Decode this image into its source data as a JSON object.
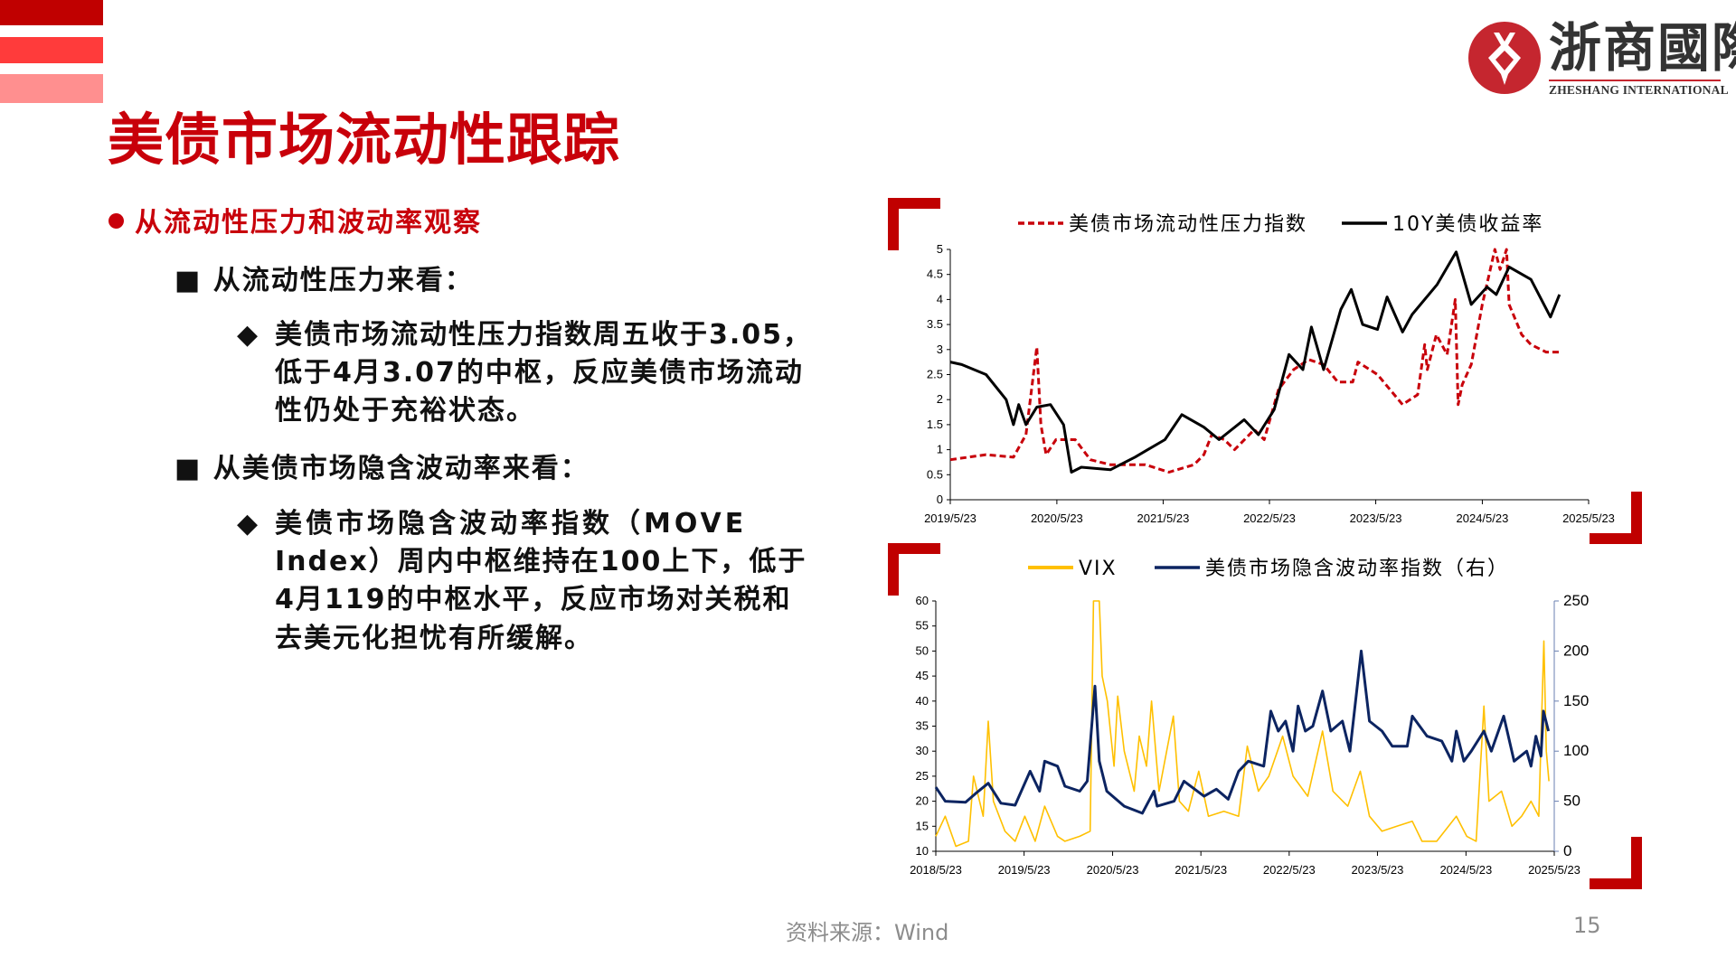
{
  "header": {
    "title": "美债市场流动性跟踪",
    "bar_colors": [
      "#c00000",
      "#ff3b3b",
      "#ff8f8f"
    ]
  },
  "logo": {
    "name_cn": "浙商國際",
    "name_en": "ZHESHANG INTERNATIONAL",
    "brand_color": "#c5262f"
  },
  "content": {
    "bullet": "从流动性压力和波动率观察",
    "sections": [
      {
        "heading": "从流动性压力来看：",
        "lines": [
          "美债市场流动性压力指数周五收于3.05，",
          "低于4月3.07的中枢，反应美债市场流动",
          "性仍处于充裕状态。"
        ]
      },
      {
        "heading": "从美债市场隐含波动率来看：",
        "lines": [
          "美债市场隐含波动率指数（MOVE",
          "Index）周内中枢维持在100上下，低于",
          "4月119的中枢水平，反应市场对关税和",
          "去美元化担忧有所缓解。"
        ]
      }
    ]
  },
  "footer": {
    "source": "资料来源：Wind",
    "page_number": "15"
  },
  "chart_data": [
    {
      "type": "line",
      "title": "",
      "xlabel": "",
      "ylabel": "",
      "x_ticks": [
        "2019/5/23",
        "2020/5/23",
        "2021/5/23",
        "2022/5/23",
        "2023/5/23",
        "2024/5/23",
        "2025/5/23"
      ],
      "xlim": [
        "2019-05-23",
        "2025-05-23"
      ],
      "ylim": [
        0,
        5
      ],
      "y_ticks": [
        0,
        0.5,
        1,
        1.5,
        2,
        2.5,
        3,
        3.5,
        4,
        4.5,
        5
      ],
      "legend": "top",
      "grid": false,
      "series": [
        {
          "name": "美债市场流动性压力指数",
          "color": "#c8000a",
          "style": "dashed",
          "x": [
            "2019-05-23",
            "2019-09-23",
            "2019-12-26",
            "2020-02-07",
            "2020-03-15",
            "2020-03-29",
            "2020-04-16",
            "2020-05-20",
            "2020-07-25",
            "2020-09-15",
            "2020-11-23",
            "2021-03-23",
            "2021-06-12",
            "2021-09-06",
            "2021-10-10",
            "2021-11-06",
            "2021-12-19",
            "2022-01-23",
            "2022-04-01",
            "2022-05-05",
            "2022-06-23",
            "2022-08-14",
            "2022-10-05",
            "2022-11-25",
            "2023-01-13",
            "2023-03-05",
            "2023-03-23",
            "2023-05-29",
            "2023-08-23",
            "2023-10-14",
            "2023-11-07",
            "2023-11-16",
            "2023-12-17",
            "2024-01-23",
            "2024-02-20",
            "2024-03-01",
            "2024-03-15",
            "2024-04-15",
            "2024-05-23",
            "2024-07-05",
            "2024-07-23",
            "2024-08-14",
            "2024-08-23",
            "2024-10-05",
            "2024-11-06",
            "2024-12-28",
            "2025-02-12"
          ],
          "y": [
            0.8,
            0.9,
            0.85,
            1.3,
            3.05,
            1.5,
            0.9,
            1.2,
            1.2,
            0.8,
            0.7,
            0.7,
            0.55,
            0.7,
            0.9,
            1.3,
            1.2,
            1.0,
            1.4,
            1.2,
            2.2,
            2.6,
            2.8,
            2.7,
            2.35,
            2.35,
            2.75,
            2.5,
            1.9,
            2.1,
            3.1,
            2.6,
            3.3,
            2.9,
            4.0,
            1.9,
            2.3,
            2.7,
            3.9,
            5.0,
            4.6,
            5.0,
            3.9,
            3.3,
            3.1,
            2.95,
            2.95
          ]
        },
        {
          "name": "10Y美债收益率",
          "color": "#000000",
          "style": "solid",
          "x": [
            "2019-05-23",
            "2019-07-01",
            "2019-09-23",
            "2019-12-01",
            "2019-12-26",
            "2020-01-13",
            "2020-02-07",
            "2020-03-15",
            "2020-05-01",
            "2020-06-15",
            "2020-07-12",
            "2020-08-15",
            "2020-11-23",
            "2021-02-15",
            "2021-05-29",
            "2021-07-26",
            "2021-10-10",
            "2021-12-01",
            "2022-02-25",
            "2022-04-15",
            "2022-06-08",
            "2022-07-29",
            "2022-09-15",
            "2022-10-14",
            "2022-11-25",
            "2023-01-23",
            "2023-02-28",
            "2023-04-08",
            "2023-05-29",
            "2023-07-01",
            "2023-08-23",
            "2023-09-25",
            "2023-12-20",
            "2024-02-23",
            "2024-04-15",
            "2024-06-08",
            "2024-07-10",
            "2024-08-23",
            "2024-11-06",
            "2025-01-12",
            "2025-02-12"
          ],
          "y": [
            2.75,
            2.7,
            2.5,
            2.0,
            1.5,
            1.9,
            1.5,
            1.85,
            1.9,
            1.5,
            0.55,
            0.65,
            0.6,
            0.85,
            1.2,
            1.7,
            1.45,
            1.2,
            1.6,
            1.3,
            1.8,
            2.9,
            2.6,
            3.45,
            2.6,
            3.8,
            4.2,
            3.5,
            3.4,
            4.05,
            3.35,
            3.7,
            4.3,
            4.95,
            3.9,
            4.25,
            4.1,
            4.65,
            4.4,
            3.65,
            4.1
          ]
        }
      ]
    },
    {
      "type": "line",
      "title": "",
      "xlabel": "",
      "ylabel": "",
      "x_ticks": [
        "2018/5/23",
        "2019/5/23",
        "2020/5/23",
        "2021/5/23",
        "2022/5/23",
        "2023/5/23",
        "2024/5/23",
        "2025/5/23"
      ],
      "xlim": [
        "2018-05-23",
        "2025-05-23"
      ],
      "ylim": [
        10,
        60
      ],
      "y_ticks": [
        10,
        15,
        20,
        25,
        30,
        35,
        40,
        45,
        50,
        55,
        60
      ],
      "y2lim": [
        0,
        250
      ],
      "y2_ticks": [
        0,
        50,
        100,
        150,
        200,
        250
      ],
      "legend": "top",
      "grid": false,
      "series": [
        {
          "name": "VIX",
          "color": "#ffc000",
          "axis": "left",
          "x": [
            "2018-05-23",
            "2018-07-01",
            "2018-08-14",
            "2018-10-05",
            "2018-10-26",
            "2018-12-05",
            "2018-12-26",
            "2019-01-16",
            "2019-03-05",
            "2019-04-16",
            "2019-05-26",
            "2019-07-08",
            "2019-08-16",
            "2019-10-08",
            "2019-11-08",
            "2020-01-08",
            "2020-02-20",
            "2020-03-05",
            "2020-03-29",
            "2020-04-10",
            "2020-05-01",
            "2020-05-29",
            "2020-06-13",
            "2020-07-10",
            "2020-08-20",
            "2020-09-10",
            "2020-10-10",
            "2020-10-31",
            "2020-12-01",
            "2021-01-29",
            "2021-02-23",
            "2021-04-01",
            "2021-05-14",
            "2021-06-23",
            "2021-08-26",
            "2021-10-26",
            "2021-12-01",
            "2022-01-16",
            "2022-02-28",
            "2022-04-26",
            "2022-06-08",
            "2022-08-08",
            "2022-10-08",
            "2022-11-20",
            "2023-01-20",
            "2023-03-13",
            "2023-04-20",
            "2023-06-11",
            "2023-08-11",
            "2023-10-14",
            "2023-11-23",
            "2024-01-23",
            "2024-04-13",
            "2024-05-26",
            "2024-07-04",
            "2024-08-05",
            "2024-08-26",
            "2024-10-17",
            "2024-11-29",
            "2025-01-08",
            "2025-02-16",
            "2025-03-20",
            "2025-04-10",
            "2025-04-20",
            "2025-05-01"
          ],
          "y": [
            13,
            17,
            11,
            12,
            25,
            17,
            36,
            20,
            14,
            12,
            17,
            12,
            19,
            13,
            12,
            13,
            14,
            60,
            60,
            45,
            40,
            27,
            41,
            30,
            22,
            33,
            27,
            40,
            22,
            37,
            20,
            18,
            26,
            17,
            18,
            17,
            31,
            22,
            25,
            33,
            25,
            21,
            34,
            22,
            19,
            26,
            17,
            14,
            15,
            16,
            12,
            12,
            17,
            13,
            12,
            39,
            20,
            22,
            15,
            17,
            20,
            17,
            52,
            30,
            24
          ]
        },
        {
          "name": "美债市场隐含波动率指数（右）",
          "color": "#0c2461",
          "axis": "right",
          "x": [
            "2018-05-23",
            "2018-07-01",
            "2018-09-23",
            "2018-11-05",
            "2018-12-26",
            "2019-02-16",
            "2019-04-16",
            "2019-06-17",
            "2019-07-26",
            "2019-08-16",
            "2019-10-08",
            "2019-11-08",
            "2020-01-08",
            "2020-02-08",
            "2020-03-11",
            "2020-03-29",
            "2020-04-29",
            "2020-07-10",
            "2020-09-23",
            "2020-11-10",
            "2020-11-23",
            "2021-02-01",
            "2021-03-14",
            "2021-06-05",
            "2021-07-26",
            "2021-09-13",
            "2021-10-26",
            "2021-12-05",
            "2022-02-07",
            "2022-03-08",
            "2022-04-08",
            "2022-05-08",
            "2022-06-08",
            "2022-06-29",
            "2022-07-29",
            "2022-08-29",
            "2022-10-08",
            "2022-11-11",
            "2022-12-29",
            "2023-01-29",
            "2023-03-17",
            "2023-04-20",
            "2023-06-11",
            "2023-07-23",
            "2023-09-23",
            "2023-10-14",
            "2023-12-14",
            "2024-02-13",
            "2024-03-26",
            "2024-04-13",
            "2024-05-14",
            "2024-06-14",
            "2024-08-05",
            "2024-09-05",
            "2024-10-26",
            "2024-12-08",
            "2025-01-29",
            "2025-02-16",
            "2025-03-08",
            "2025-03-29",
            "2025-04-08",
            "2025-04-29"
          ],
          "y": [
            64,
            50,
            49,
            58,
            68,
            48,
            46,
            80,
            60,
            90,
            85,
            65,
            60,
            70,
            165,
            90,
            60,
            45,
            38,
            60,
            45,
            50,
            70,
            55,
            62,
            52,
            80,
            90,
            85,
            140,
            120,
            130,
            100,
            145,
            120,
            125,
            160,
            120,
            130,
            100,
            200,
            130,
            120,
            105,
            105,
            135,
            115,
            110,
            90,
            120,
            90,
            100,
            120,
            100,
            135,
            90,
            100,
            85,
            115,
            95,
            140,
            120
          ]
        }
      ]
    }
  ]
}
